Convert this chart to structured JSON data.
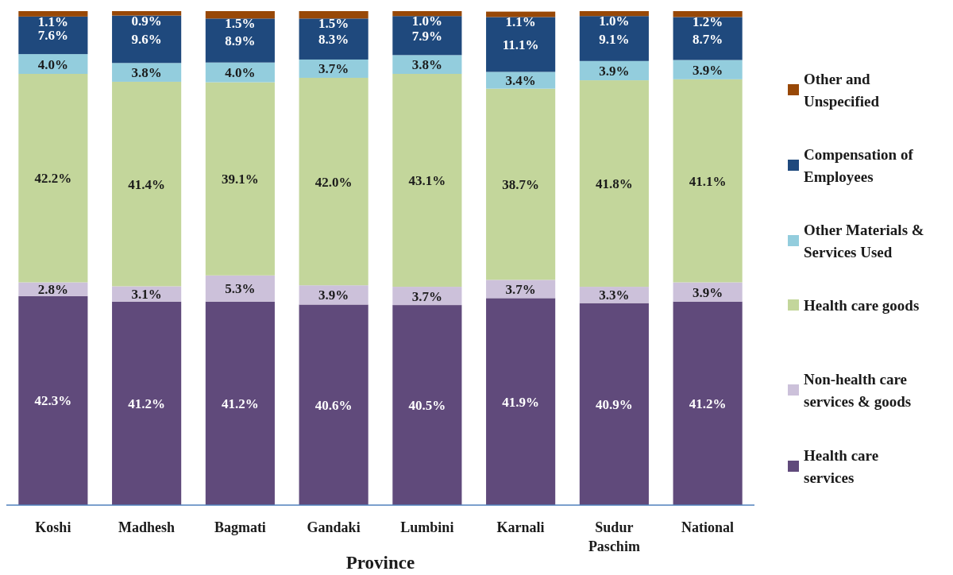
{
  "chart_data": {
    "type": "bar",
    "stacked": true,
    "xlabel": "Province",
    "categories": [
      "Koshi",
      "Madhesh",
      "Bagmati",
      "Gandaki",
      "Lumbini",
      "Karnali",
      "Sudur Paschim",
      "National"
    ],
    "series": [
      {
        "name": "Health care services",
        "color": "#604a7b",
        "values": [
          42.3,
          41.2,
          41.2,
          40.6,
          40.5,
          41.9,
          40.9,
          41.2
        ],
        "value_labels": [
          "42.3%",
          "41.2%",
          "41.2%",
          "40.6%",
          "40.5%",
          "41.9%",
          "40.9%",
          "41.2%"
        ]
      },
      {
        "name": "Non-health care services & goods",
        "color": "#ccc1da",
        "values": [
          2.8,
          3.1,
          5.3,
          3.9,
          3.7,
          3.7,
          3.3,
          3.9
        ],
        "value_labels": [
          "2.8%",
          "3.1%",
          "5.3%",
          "3.9%",
          "3.7%",
          "3.7%",
          "3.3%",
          "3.9%"
        ]
      },
      {
        "name": "Health care goods",
        "color": "#c3d69b",
        "values": [
          42.2,
          41.4,
          39.1,
          42.0,
          43.1,
          38.7,
          41.8,
          41.1
        ],
        "value_labels": [
          "42.2%",
          "41.4%",
          "39.1%",
          "42.0%",
          "43.1%",
          "38.7%",
          "41.8%",
          "41.1%"
        ]
      },
      {
        "name": "Other Materials & Services Used",
        "color": "#93cddd",
        "values": [
          4.0,
          3.8,
          4.0,
          3.7,
          3.8,
          3.4,
          3.9,
          3.9
        ],
        "value_labels": [
          "4.0%",
          "3.8%",
          "4.0%",
          "3.7%",
          "3.8%",
          "3.4%",
          "3.9%",
          "3.9%"
        ]
      },
      {
        "name": "Compensation of Employees",
        "color": "#1f497d",
        "values": [
          7.6,
          9.6,
          8.9,
          8.3,
          7.9,
          11.1,
          9.1,
          8.7
        ],
        "value_labels": [
          "7.6%",
          "9.6%",
          "8.9%",
          "8.3%",
          "7.9%",
          "11.1%",
          "9.1%",
          "8.7%"
        ]
      },
      {
        "name": "Other and Unspecified",
        "color": "#984807",
        "values": [
          1.1,
          0.9,
          1.5,
          1.5,
          1.0,
          1.1,
          1.0,
          1.2
        ],
        "value_labels": [
          "1.1%",
          "0.9%",
          "1.5%",
          "1.5%",
          "1.0%",
          "1.1%",
          "1.0%",
          "1.2%"
        ]
      }
    ],
    "legend": "right"
  }
}
